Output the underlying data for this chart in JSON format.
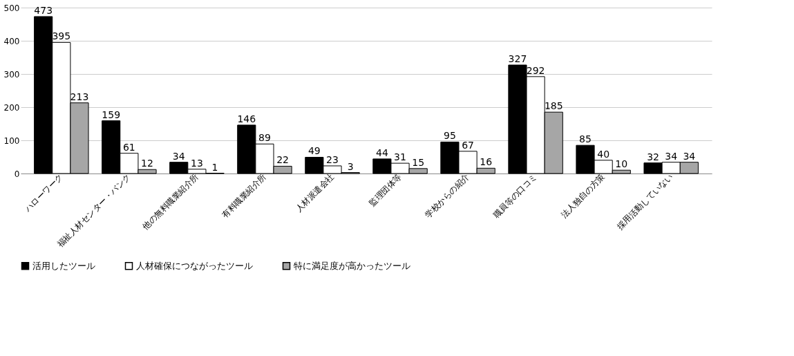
{
  "chart_data": {
    "type": "bar",
    "categories": [
      "ハローワーク",
      "福祉人材センター・バンク",
      "他の無料職業紹介所",
      "有料職業紹介所",
      "人材派遣会社",
      "監理団体等",
      "学校からの紹介",
      "職員等の口コミ",
      "法人独自の方策",
      "採用活動していない"
    ],
    "series": [
      {
        "name": "活用したツール",
        "color": "#000000",
        "values": [
          473,
          159,
          34,
          146,
          49,
          44,
          95,
          327,
          85,
          32
        ]
      },
      {
        "name": "人材確保につながったツール",
        "color": "#ffffff",
        "values": [
          395,
          61,
          13,
          89,
          23,
          31,
          67,
          292,
          40,
          34
        ]
      },
      {
        "name": "特に満足度が高かったツール",
        "color": "#a6a6a6",
        "values": [
          213,
          12,
          1,
          22,
          3,
          15,
          16,
          185,
          10,
          34
        ]
      }
    ],
    "ylim": [
      0,
      500
    ],
    "yticks": [
      0,
      100,
      200,
      300,
      400,
      500
    ],
    "grid": "y",
    "legend": "bottom",
    "data_labels": true
  }
}
